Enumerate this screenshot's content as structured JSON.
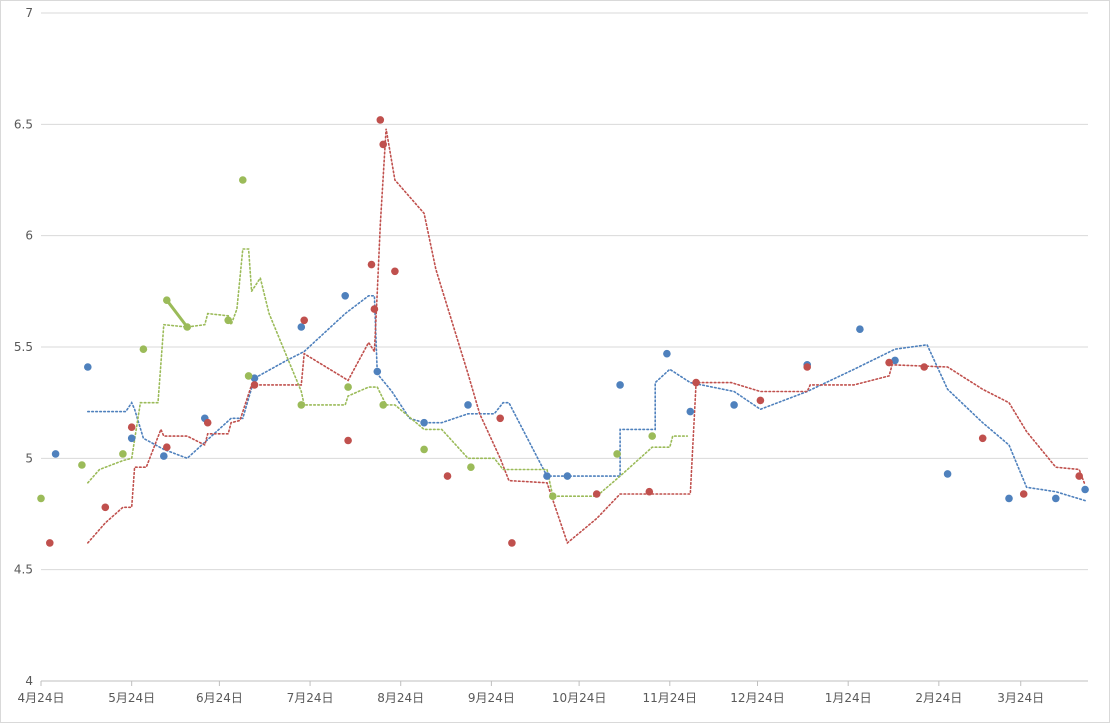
{
  "chart_data": {
    "type": "scatter",
    "title": "",
    "xlabel": "",
    "ylabel": "",
    "ylim": [
      4,
      7
    ],
    "xlim": [
      0,
      358
    ],
    "y_ticks": [
      4,
      4.5,
      5,
      5.5,
      6,
      6.5,
      7
    ],
    "y_tick_labels": [
      "4",
      "4.5",
      "5",
      "5.5",
      "6",
      "6.5",
      "7"
    ],
    "x_ticks": [
      0,
      31,
      61,
      92,
      123,
      154,
      184,
      215,
      245,
      276,
      307,
      335
    ],
    "x_tick_labels": [
      "4月24日",
      "5月24日",
      "6月24日",
      "7月24日",
      "8月24日",
      "9月24日",
      "10月24日",
      "11月24日",
      "12月24日",
      "1月24日",
      "2月24日",
      "3月24日"
    ],
    "grid": true,
    "legend": "none",
    "series": [
      {
        "color": "#4f81bd",
        "points": [
          [
            5,
            5.02
          ],
          [
            16,
            5.41
          ],
          [
            31,
            5.09
          ],
          [
            42,
            5.01
          ],
          [
            56,
            5.18
          ],
          [
            73,
            5.36
          ],
          [
            89,
            5.59
          ],
          [
            104,
            5.73
          ],
          [
            115,
            5.39
          ],
          [
            131,
            5.16
          ],
          [
            146,
            5.24
          ],
          [
            173,
            4.92
          ],
          [
            180,
            4.92
          ],
          [
            198,
            5.33
          ],
          [
            214,
            5.47
          ],
          [
            222,
            5.21
          ],
          [
            237,
            5.24
          ],
          [
            262,
            5.42
          ],
          [
            280,
            5.58
          ],
          [
            292,
            5.44
          ],
          [
            310,
            4.93
          ],
          [
            331,
            4.82
          ],
          [
            347,
            4.82
          ],
          [
            357,
            4.86
          ]
        ],
        "trend": [
          [
            16,
            5.21
          ],
          [
            29,
            5.21
          ],
          [
            31,
            5.25
          ],
          [
            32,
            5.22
          ],
          [
            35,
            5.09
          ],
          [
            42,
            5.04
          ],
          [
            50,
            5.0
          ],
          [
            60,
            5.12
          ],
          [
            65,
            5.18
          ],
          [
            69,
            5.18
          ],
          [
            73,
            5.36
          ],
          [
            84,
            5.44
          ],
          [
            90,
            5.48
          ],
          [
            104,
            5.65
          ],
          [
            112,
            5.73
          ],
          [
            114,
            5.73
          ],
          [
            115,
            5.38
          ],
          [
            120,
            5.3
          ],
          [
            126,
            5.18
          ],
          [
            131,
            5.16
          ],
          [
            137,
            5.16
          ],
          [
            146,
            5.2
          ],
          [
            155,
            5.2
          ],
          [
            158,
            5.25
          ],
          [
            160,
            5.25
          ],
          [
            173,
            4.92
          ],
          [
            180,
            4.92
          ],
          [
            198,
            4.92
          ],
          [
            198,
            5.13
          ],
          [
            210,
            5.13
          ],
          [
            210,
            5.34
          ],
          [
            215,
            5.4
          ],
          [
            222,
            5.34
          ],
          [
            237,
            5.3
          ],
          [
            246,
            5.22
          ],
          [
            262,
            5.3
          ],
          [
            278,
            5.4
          ],
          [
            292,
            5.49
          ],
          [
            303,
            5.51
          ],
          [
            310,
            5.31
          ],
          [
            322,
            5.16
          ],
          [
            331,
            5.06
          ],
          [
            337,
            4.87
          ],
          [
            347,
            4.85
          ],
          [
            357,
            4.81
          ]
        ]
      },
      {
        "color": "#c0504d",
        "points": [
          [
            3,
            4.62
          ],
          [
            22,
            4.78
          ],
          [
            31,
            5.14
          ],
          [
            43,
            5.05
          ],
          [
            57,
            5.16
          ],
          [
            73,
            5.33
          ],
          [
            90,
            5.62
          ],
          [
            105,
            5.08
          ],
          [
            113,
            5.87
          ],
          [
            114,
            5.67
          ],
          [
            116,
            6.52
          ],
          [
            117,
            6.41
          ],
          [
            121,
            5.84
          ],
          [
            139,
            4.92
          ],
          [
            157,
            5.18
          ],
          [
            161,
            4.62
          ],
          [
            190,
            4.84
          ],
          [
            208,
            4.85
          ],
          [
            224,
            5.34
          ],
          [
            246,
            5.26
          ],
          [
            262,
            5.41
          ],
          [
            290,
            5.43
          ],
          [
            302,
            5.41
          ],
          [
            322,
            5.09
          ],
          [
            336,
            4.84
          ],
          [
            355,
            4.92
          ]
        ],
        "trend": [
          [
            16,
            4.62
          ],
          [
            22,
            4.71
          ],
          [
            28,
            4.78
          ],
          [
            31,
            4.78
          ],
          [
            32,
            4.96
          ],
          [
            36,
            4.96
          ],
          [
            41,
            5.13
          ],
          [
            42,
            5.1
          ],
          [
            50,
            5.1
          ],
          [
            56,
            5.06
          ],
          [
            57,
            5.11
          ],
          [
            64,
            5.11
          ],
          [
            65,
            5.16
          ],
          [
            68,
            5.17
          ],
          [
            72,
            5.33
          ],
          [
            89,
            5.33
          ],
          [
            90,
            5.47
          ],
          [
            105,
            5.35
          ],
          [
            112,
            5.52
          ],
          [
            114,
            5.48
          ],
          [
            115,
            5.75
          ],
          [
            116,
            6.05
          ],
          [
            118,
            6.48
          ],
          [
            121,
            6.25
          ],
          [
            131,
            6.1
          ],
          [
            135,
            5.85
          ],
          [
            146,
            5.38
          ],
          [
            150,
            5.2
          ],
          [
            157,
            5.0
          ],
          [
            160,
            4.9
          ],
          [
            173,
            4.89
          ],
          [
            180,
            4.62
          ],
          [
            190,
            4.73
          ],
          [
            198,
            4.84
          ],
          [
            208,
            4.84
          ],
          [
            222,
            4.84
          ],
          [
            224,
            5.34
          ],
          [
            236,
            5.34
          ],
          [
            246,
            5.3
          ],
          [
            262,
            5.3
          ],
          [
            263,
            5.33
          ],
          [
            278,
            5.33
          ],
          [
            290,
            5.37
          ],
          [
            291,
            5.42
          ],
          [
            310,
            5.41
          ],
          [
            322,
            5.31
          ],
          [
            331,
            5.25
          ],
          [
            337,
            5.12
          ],
          [
            347,
            4.96
          ],
          [
            355,
            4.95
          ],
          [
            357,
            4.88
          ]
        ]
      },
      {
        "color": "#9bbb59",
        "points": [
          [
            0,
            4.82
          ],
          [
            14,
            4.97
          ],
          [
            28,
            5.02
          ],
          [
            35,
            5.49
          ],
          [
            43,
            5.71
          ],
          [
            50,
            5.59
          ],
          [
            64,
            5.62
          ],
          [
            69,
            6.25
          ],
          [
            71,
            5.37
          ],
          [
            89,
            5.24
          ],
          [
            105,
            5.32
          ],
          [
            117,
            5.24
          ],
          [
            131,
            5.04
          ],
          [
            147,
            4.96
          ],
          [
            175,
            4.83
          ],
          [
            197,
            5.02
          ],
          [
            209,
            5.1
          ]
        ],
        "trend": [
          [
            16,
            4.89
          ],
          [
            20,
            4.95
          ],
          [
            28,
            4.99
          ],
          [
            31,
            5.0
          ],
          [
            34,
            5.25
          ],
          [
            40,
            5.25
          ],
          [
            42,
            5.6
          ],
          [
            50,
            5.59
          ],
          [
            56,
            5.6
          ],
          [
            57,
            5.65
          ],
          [
            64,
            5.64
          ],
          [
            65,
            5.6
          ],
          [
            67,
            5.67
          ],
          [
            69,
            5.94
          ],
          [
            71,
            5.94
          ],
          [
            72,
            5.75
          ],
          [
            75,
            5.81
          ],
          [
            78,
            5.65
          ],
          [
            89,
            5.3
          ],
          [
            90,
            5.24
          ],
          [
            99,
            5.24
          ],
          [
            104,
            5.24
          ],
          [
            105,
            5.28
          ],
          [
            112,
            5.32
          ],
          [
            115,
            5.32
          ],
          [
            118,
            5.24
          ],
          [
            121,
            5.24
          ],
          [
            131,
            5.13
          ],
          [
            137,
            5.13
          ],
          [
            146,
            5.0
          ],
          [
            155,
            5.0
          ],
          [
            158,
            4.95
          ],
          [
            173,
            4.95
          ],
          [
            175,
            4.83
          ],
          [
            190,
            4.83
          ],
          [
            198,
            4.92
          ],
          [
            209,
            5.05
          ],
          [
            215,
            5.05
          ],
          [
            216,
            5.1
          ],
          [
            221,
            5.1
          ]
        ],
        "solid_segment": [
          [
            43,
            5.71
          ],
          [
            50,
            5.59
          ]
        ]
      }
    ]
  }
}
